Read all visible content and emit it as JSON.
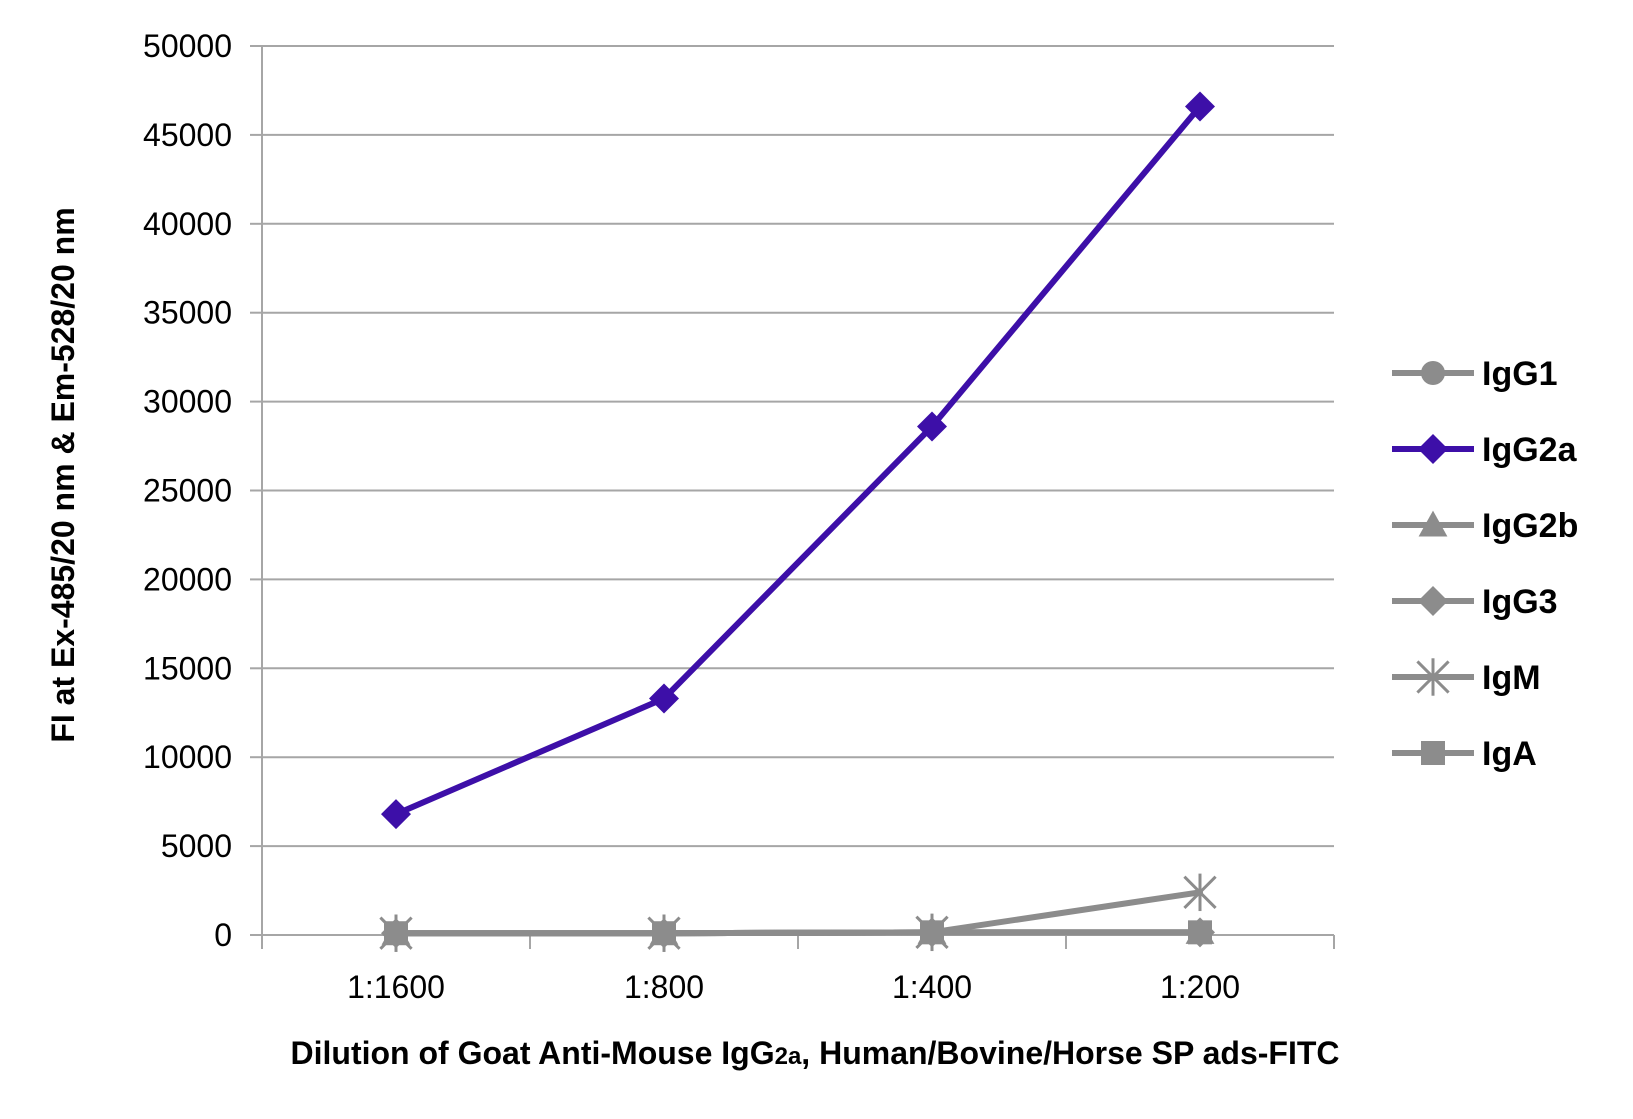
{
  "chart_data": {
    "type": "line",
    "categories": [
      "1:1600",
      "1:800",
      "1:400",
      "1:200"
    ],
    "ylim": [
      0,
      50000
    ],
    "yticks": [
      0,
      5000,
      10000,
      15000,
      20000,
      25000,
      30000,
      35000,
      40000,
      45000,
      50000
    ],
    "ylabel": "FI at Ex-485/20 nm & Em-528/20 nm",
    "xlabel": "Dilution of Goat Anti-Mouse IgG2a, Human/Bovine/Horse SP ads-FITC",
    "xlabel_parts": {
      "before": "Dilution of Goat Anti-Mouse IgG",
      "sub": "2a",
      "after": ", Human/Bovine/Horse SP ads-FITC"
    },
    "grid": true,
    "legend_position": "right",
    "series": [
      {
        "name": "IgG1",
        "values": [
          100,
          100,
          150,
          150
        ],
        "color": "#8c8c8c",
        "marker": "circle"
      },
      {
        "name": "IgG2a",
        "values": [
          6800,
          13300,
          28600,
          46600
        ],
        "color": "#3d0fa8",
        "marker": "diamond"
      },
      {
        "name": "IgG2b",
        "values": [
          100,
          100,
          150,
          150
        ],
        "color": "#8c8c8c",
        "marker": "triangle"
      },
      {
        "name": "IgG3",
        "values": [
          100,
          100,
          150,
          150
        ],
        "color": "#8c8c8c",
        "marker": "diamond"
      },
      {
        "name": "IgM",
        "values": [
          100,
          100,
          150,
          2400
        ],
        "color": "#8c8c8c",
        "marker": "star"
      },
      {
        "name": "IgA",
        "values": [
          100,
          100,
          150,
          150
        ],
        "color": "#8c8c8c",
        "marker": "square"
      }
    ]
  }
}
